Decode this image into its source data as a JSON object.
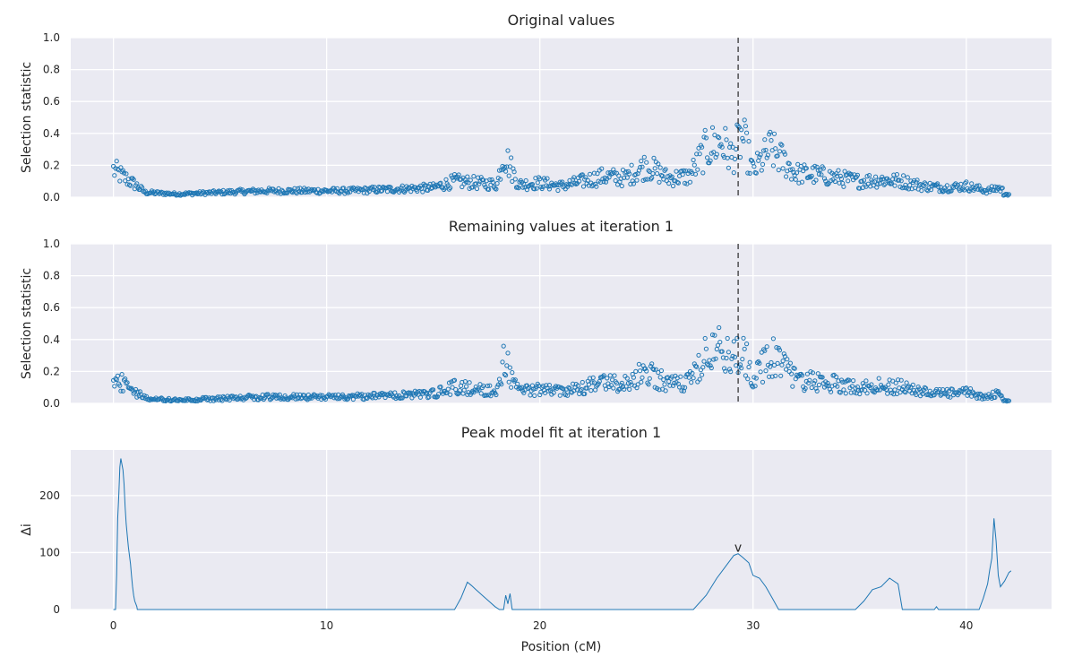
{
  "chart_data": [
    {
      "type": "scatter",
      "title": "Original values",
      "ylabel": "Selection statistic",
      "xlabel": "",
      "xlim": [
        -2,
        44
      ],
      "ylim": [
        0,
        1.0
      ],
      "yticks": [
        "0.0",
        "0.2",
        "0.4",
        "0.6",
        "0.8",
        "1.0"
      ],
      "marker": "open circle",
      "color": "#1f77b4",
      "vline_x": 29.3,
      "series": [
        {
          "x": [
            0,
            1,
            1.5,
            3,
            5,
            7,
            9,
            11,
            13,
            15,
            16,
            17,
            18,
            18.3,
            19,
            20,
            21,
            22,
            23,
            24,
            25,
            26,
            27,
            27.8,
            28.5,
            29,
            29.5,
            30,
            30.8,
            31.5,
            32,
            33,
            34,
            35,
            36,
            37,
            38,
            39,
            40,
            41,
            41.5,
            42
          ],
          "y": [
            0.17,
            0.08,
            0.03,
            0.02,
            0.03,
            0.04,
            0.04,
            0.04,
            0.05,
            0.06,
            0.1,
            0.09,
            0.08,
            0.28,
            0.08,
            0.09,
            0.07,
            0.1,
            0.13,
            0.12,
            0.2,
            0.12,
            0.13,
            0.3,
            0.35,
            0.25,
            0.38,
            0.16,
            0.3,
            0.22,
            0.15,
            0.14,
            0.12,
            0.1,
            0.11,
            0.1,
            0.07,
            0.06,
            0.07,
            0.04,
            0.06,
            0.02
          ]
        }
      ]
    },
    {
      "type": "scatter",
      "title": "Remaining values at iteration 1",
      "ylabel": "Selection statistic",
      "xlabel": "",
      "xlim": [
        -2,
        44
      ],
      "ylim": [
        0,
        1.0
      ],
      "yticks": [
        "0.0",
        "0.2",
        "0.4",
        "0.6",
        "0.8",
        "1.0"
      ],
      "marker": "open circle",
      "color": "#1f77b4",
      "vline_x": 29.3,
      "series": [
        {
          "x": [
            0,
            1,
            1.5,
            3,
            5,
            7,
            9,
            11,
            13,
            15,
            16,
            17,
            18,
            18.3,
            19,
            20,
            21,
            22,
            23,
            24,
            25,
            26,
            27,
            27.8,
            28.5,
            29,
            29.5,
            30,
            30.8,
            31.5,
            32,
            33,
            34,
            35,
            36,
            37,
            38,
            39,
            40,
            41,
            41.5,
            42
          ],
          "y": [
            0.16,
            0.08,
            0.03,
            0.02,
            0.03,
            0.04,
            0.04,
            0.04,
            0.05,
            0.06,
            0.1,
            0.09,
            0.08,
            0.28,
            0.08,
            0.09,
            0.07,
            0.1,
            0.13,
            0.12,
            0.2,
            0.12,
            0.13,
            0.3,
            0.35,
            0.25,
            0.38,
            0.16,
            0.3,
            0.22,
            0.15,
            0.14,
            0.12,
            0.1,
            0.11,
            0.1,
            0.07,
            0.06,
            0.07,
            0.04,
            0.06,
            0.02
          ]
        }
      ]
    },
    {
      "type": "line",
      "title": "Peak model fit at iteration 1",
      "ylabel": "Δi",
      "xlabel": "Position (cM)",
      "xlim": [
        -2,
        44
      ],
      "ylim": [
        0,
        280
      ],
      "yticks": [
        "0",
        "100",
        "200"
      ],
      "xticks": [
        "0",
        "10",
        "20",
        "30",
        "40"
      ],
      "color": "#1f77b4",
      "peak_marker": {
        "x": 29.3,
        "y": 98,
        "label": "v"
      },
      "series": [
        {
          "x": [
            0,
            0.1,
            0.15,
            0.2,
            0.25,
            0.3,
            0.35,
            0.4,
            0.45,
            0.5,
            0.55,
            0.6,
            0.65,
            0.7,
            0.75,
            0.8,
            0.85,
            0.9,
            0.95,
            1.0,
            1.05,
            1.1,
            1.12,
            1.2,
            16,
            16.3,
            16.6,
            16.8,
            17.0,
            17.3,
            17.6,
            17.9,
            18.1,
            18.3,
            18.4,
            18.5,
            18.6,
            18.7,
            27.2,
            27.8,
            28.3,
            28.8,
            29.1,
            29.3,
            29.5,
            29.8,
            30.0,
            30.3,
            30.6,
            30.9,
            31.2,
            34.8,
            35.2,
            35.6,
            36.0,
            36.4,
            36.8,
            37.0,
            38.5,
            38.6,
            38.7,
            40.6,
            40.8,
            41.0,
            41.1,
            41.2,
            41.3,
            41.4,
            41.5,
            41.6,
            41.8,
            42.0,
            42.1
          ],
          "y": [
            0,
            0,
            60,
            160,
            200,
            250,
            265,
            255,
            245,
            220,
            180,
            150,
            130,
            110,
            95,
            80,
            60,
            40,
            25,
            15,
            10,
            5,
            0,
            0,
            0,
            20,
            48,
            42,
            35,
            25,
            15,
            5,
            0,
            0,
            25,
            10,
            28,
            0,
            0,
            25,
            55,
            80,
            95,
            98,
            92,
            82,
            60,
            55,
            40,
            20,
            0,
            0,
            15,
            35,
            40,
            55,
            45,
            0,
            0,
            5,
            0,
            0,
            20,
            45,
            70,
            90,
            160,
            120,
            60,
            40,
            50,
            65,
            68
          ]
        }
      ]
    }
  ]
}
